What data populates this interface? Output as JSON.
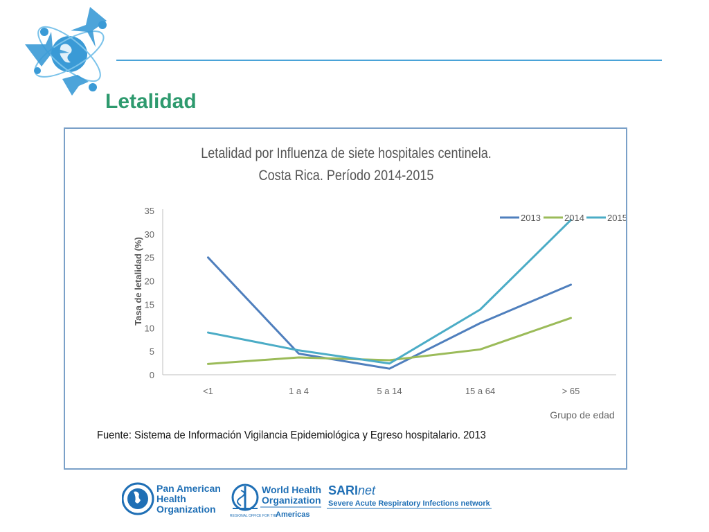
{
  "slide": {
    "title": "Letalidad",
    "source_note": "Fuente: Sistema de Información  Vigilancia Epidemiológica y Egreso hospitalario. 2013"
  },
  "colors": {
    "title": "#2e9a6e",
    "header_line": "#4aa3d8",
    "frame": "#7aa0c8",
    "paho_blue": "#1f6fb5"
  },
  "chart_data": {
    "type": "line",
    "title_line1": "Letalidad  por Influenza de siete hospitales centinela.",
    "title_line2": "Costa Rica. Período 2014-2015",
    "ylabel": "Tasa de letalidad (%)",
    "xlabel": "Grupo de edad",
    "categories": [
      "<1",
      "1 a 4",
      "5 a 14",
      "15 a 64",
      "> 65"
    ],
    "ylim": [
      0,
      35
    ],
    "yticks": [
      0,
      5,
      10,
      15,
      20,
      25,
      30,
      35
    ],
    "legend_position": "top-right",
    "grid": false,
    "series": [
      {
        "name": "2013",
        "color": "#4f7fbd",
        "values": [
          25.0,
          4.5,
          1.3,
          11.0,
          19.2
        ]
      },
      {
        "name": "2014",
        "color": "#9bbb59",
        "values": [
          2.3,
          3.7,
          3.1,
          5.4,
          12.1
        ]
      },
      {
        "name": "2015",
        "color": "#4bacc6",
        "values": [
          9.0,
          5.2,
          2.4,
          13.9,
          33.0
        ]
      }
    ]
  },
  "footer": {
    "paho_line1": "Pan American",
    "paho_line2": "Health",
    "paho_line3": "Organization",
    "who_line1": "World Health",
    "who_line2": "Organization",
    "who_small": "REGIONAL OFFICE FOR THE",
    "who_americas": "Americas",
    "sari_bold": "SARI",
    "sari_italic": "net",
    "sari_sub": "Severe Acute Respiratory Infections network"
  }
}
